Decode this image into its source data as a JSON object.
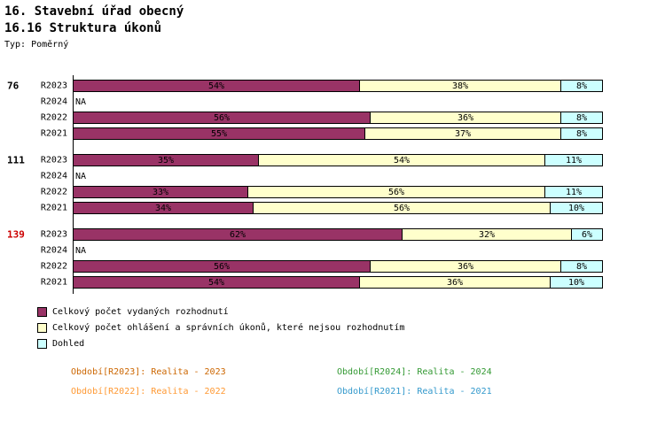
{
  "header": {
    "title": "16. Stavební úřad obecný",
    "subtitle": "16.16 Struktura úkonů",
    "type_label": "Typ: Poměrný"
  },
  "legend": [
    {
      "label": "Celkový počet vydaných rozhodnutí",
      "color": "#993366"
    },
    {
      "label": "Celkový počet ohlášení a správních úkonů, které nejsou rozhodnutím",
      "color": "#FFFFCC"
    },
    {
      "label": "Dohled",
      "color": "#CCFFFF"
    }
  ],
  "footer": {
    "items": [
      {
        "label": "Období[R2023]:",
        "value": "Realita - 2023",
        "color": "#CC6600"
      },
      {
        "label": "Období[R2024]:",
        "value": "Realita - 2024",
        "color": "#339933"
      },
      {
        "label": "Období[R2022]:",
        "value": "Realita - 2022",
        "color": "#FF9933"
      },
      {
        "label": "Období[R2021]:",
        "value": "Realita - 2021",
        "color": "#3399CC"
      }
    ]
  },
  "chart_data": {
    "type": "bar",
    "orientation": "horizontal",
    "stacked": true,
    "value_unit": "%",
    "xlim": [
      0,
      100
    ],
    "na_text": "NA",
    "series_names": [
      "Celkový počet vydaných rozhodnutí",
      "Celkový počet ohlášení a správních úkonů, které nejsou rozhodnutím",
      "Dohled"
    ],
    "series_colors": [
      "#993366",
      "#FFFFCC",
      "#CCFFFF"
    ],
    "groups": [
      {
        "group_label": "76",
        "group_label_color": "#000000",
        "rows": [
          {
            "period": "R2023",
            "values": [
              54,
              38,
              8
            ]
          },
          {
            "period": "R2024",
            "na": true
          },
          {
            "period": "R2022",
            "values": [
              56,
              36,
              8
            ]
          },
          {
            "period": "R2021",
            "values": [
              55,
              37,
              8
            ]
          }
        ]
      },
      {
        "group_label": "111",
        "group_label_color": "#000000",
        "rows": [
          {
            "period": "R2023",
            "values": [
              35,
              54,
              11
            ]
          },
          {
            "period": "R2024",
            "na": true
          },
          {
            "period": "R2022",
            "values": [
              33,
              56,
              11
            ]
          },
          {
            "period": "R2021",
            "values": [
              34,
              56,
              10
            ]
          }
        ]
      },
      {
        "group_label": "139",
        "group_label_color": "#CC0000",
        "rows": [
          {
            "period": "R2023",
            "values": [
              62,
              32,
              6
            ]
          },
          {
            "period": "R2024",
            "na": true
          },
          {
            "period": "R2022",
            "values": [
              56,
              36,
              8
            ]
          },
          {
            "period": "R2021",
            "values": [
              54,
              36,
              10
            ]
          }
        ]
      }
    ]
  }
}
